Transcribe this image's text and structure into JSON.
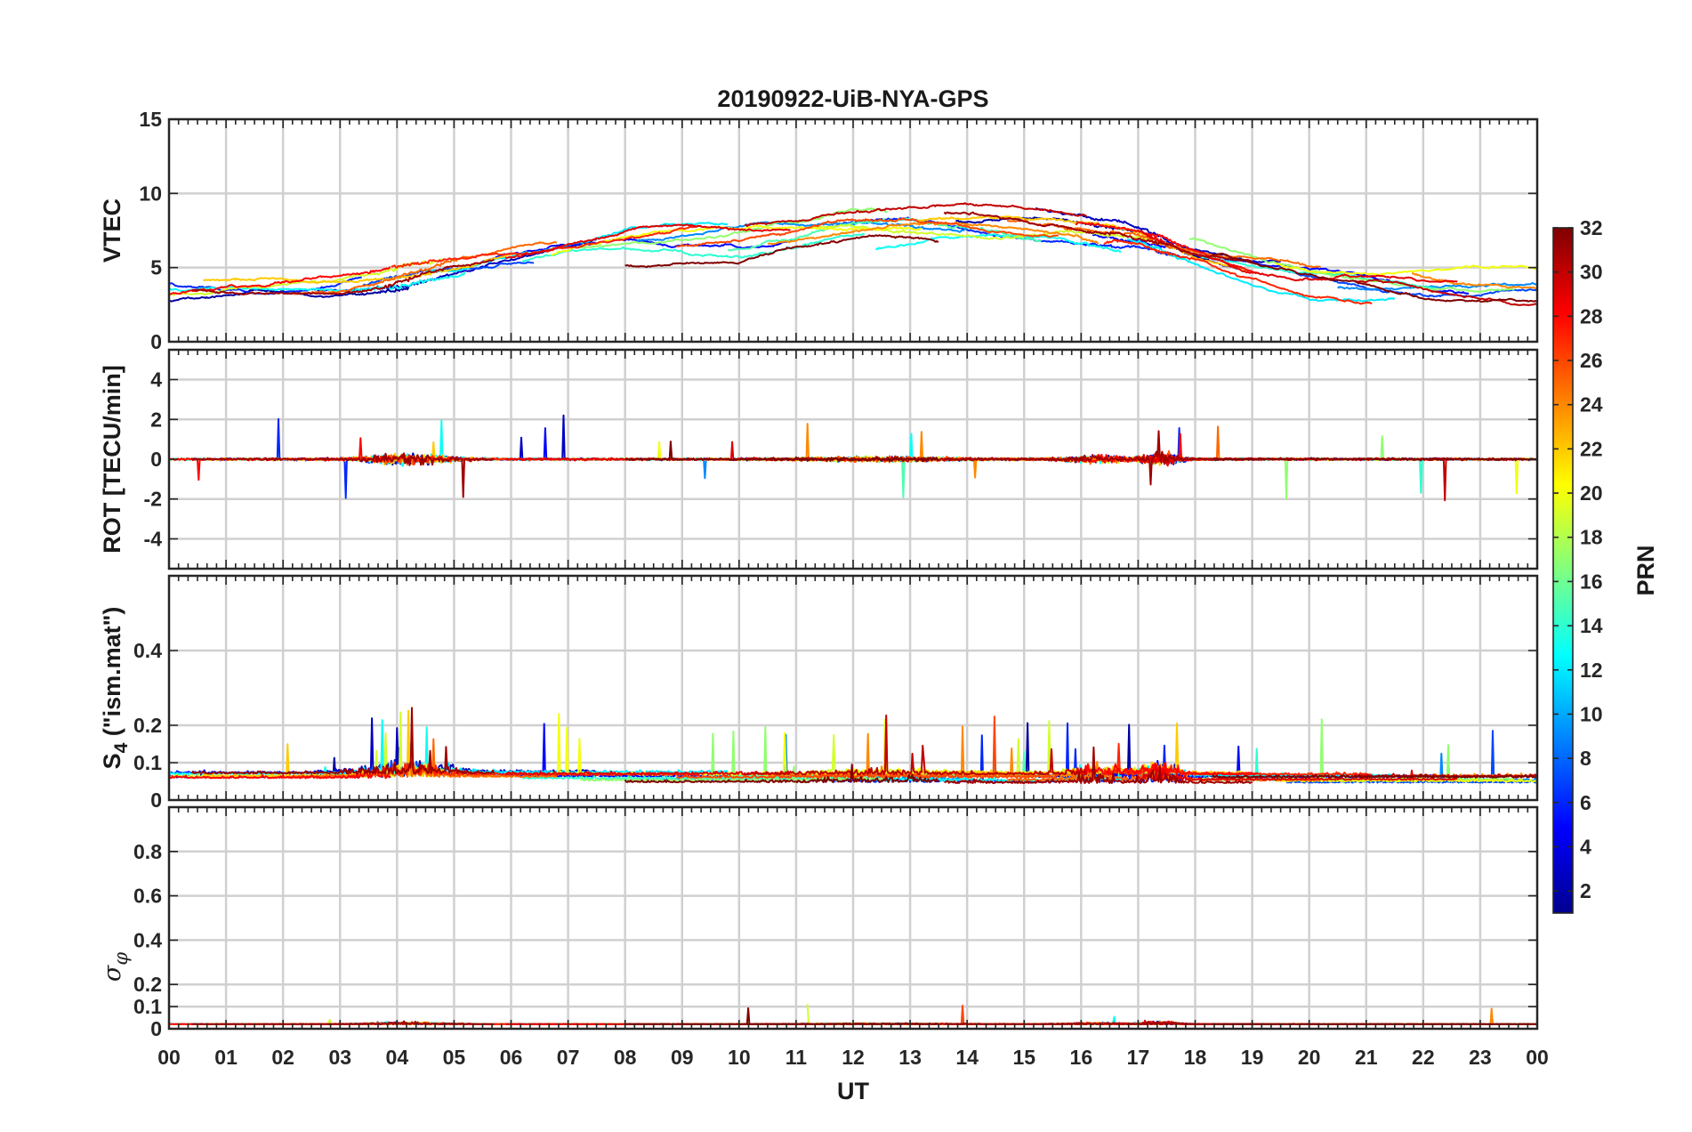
{
  "chart_data": {
    "type": "line",
    "title": "20190922-UiB-NYA-GPS",
    "xlabel": "UT",
    "x_tick_labels": [
      "00",
      "01",
      "02",
      "03",
      "04",
      "05",
      "06",
      "07",
      "08",
      "09",
      "10",
      "11",
      "12",
      "13",
      "14",
      "15",
      "16",
      "17",
      "18",
      "19",
      "20",
      "21",
      "22",
      "23",
      "00"
    ],
    "x_range_hours": [
      0,
      24
    ],
    "grid": true,
    "panels": [
      {
        "id": "vtec",
        "ylabel": "VTEC",
        "ylim": [
          0,
          15
        ],
        "yticks": [
          0,
          5,
          10,
          15
        ],
        "ytick_labels": [
          "0",
          "5",
          "10",
          "15"
        ],
        "typical_range": [
          2,
          10.2
        ],
        "envelope": {
          "hours": [
            0,
            2,
            3,
            4,
            5,
            6,
            7,
            8,
            9,
            10,
            11,
            12,
            13,
            14,
            15,
            16,
            17,
            18,
            19,
            20,
            21,
            22,
            23,
            24
          ],
          "values": [
            3.5,
            3.6,
            3.8,
            4.3,
            5.0,
            5.8,
            6.4,
            6.9,
            7.1,
            7.2,
            7.6,
            8.0,
            8.2,
            8.0,
            7.8,
            7.6,
            7.2,
            6.0,
            5.0,
            4.3,
            4.0,
            3.6,
            3.4,
            3.3
          ]
        }
      },
      {
        "id": "rot",
        "ylabel": "ROT [TECU/min]",
        "ylim": [
          -5.5,
          5.5
        ],
        "yticks": [
          -4,
          -2,
          0,
          2,
          4
        ],
        "ytick_labels": [
          "-4",
          "-2",
          "0",
          "2",
          "4"
        ],
        "typical_range": [
          -2,
          3
        ]
      },
      {
        "id": "s4",
        "ylabel_main": "S",
        "ylabel_sub": "4",
        "ylabel_rest": " (\"ism.mat\")",
        "ylim": [
          0,
          0.6
        ],
        "yticks": [
          0,
          0.1,
          0.2,
          0.4
        ],
        "ytick_labels": [
          "0",
          "0.1",
          "0.2",
          "0.4"
        ],
        "typical_range": [
          0.03,
          0.34
        ]
      },
      {
        "id": "sigphi",
        "ylabel_main": "σ",
        "ylabel_sub": "φ",
        "ylim": [
          0,
          1
        ],
        "yticks": [
          0,
          0.1,
          0.2,
          0.4,
          0.6,
          0.8
        ],
        "ytick_labels": [
          "0",
          "0.1",
          "0.2",
          "0.4",
          "0.6",
          "0.8"
        ],
        "typical_range": [
          0.01,
          0.15
        ]
      }
    ],
    "colorbar": {
      "label": "PRN",
      "colormap": "jet",
      "range": [
        1,
        32
      ],
      "ticks": [
        2,
        4,
        6,
        8,
        10,
        12,
        14,
        16,
        18,
        20,
        22,
        24,
        26,
        28,
        30,
        32
      ],
      "tick_labels": [
        "2",
        "4",
        "6",
        "8",
        "10",
        "12",
        "14",
        "16",
        "18",
        "20",
        "22",
        "24",
        "26",
        "28",
        "30",
        "32"
      ]
    },
    "series_key": "PRN",
    "series": [
      {
        "prn": 2,
        "passes": [
          [
            0,
            4.2
          ],
          [
            13.8,
            18.8
          ]
        ]
      },
      {
        "prn": 3,
        "passes": [
          [
            2.6,
            7.5
          ],
          [
            15.2,
            19.5
          ]
        ]
      },
      {
        "prn": 5,
        "passes": [
          [
            5.5,
            11
          ],
          [
            16.2,
            22.8
          ]
        ]
      },
      {
        "prn": 6,
        "passes": [
          [
            0,
            3.4
          ],
          [
            11.6,
            17.8
          ]
        ]
      },
      {
        "prn": 7,
        "passes": [
          [
            3.4,
            6.4
          ],
          [
            19.6,
            24
          ]
        ]
      },
      {
        "prn": 9,
        "passes": [
          [
            8.2,
            14
          ],
          [
            20.5,
            24
          ]
        ]
      },
      {
        "prn": 12,
        "passes": [
          [
            4.5,
            9.8
          ],
          [
            16.8,
            21.5
          ]
        ]
      },
      {
        "prn": 13,
        "passes": [
          [
            0,
            5.2
          ],
          [
            12.4,
            16.7
          ]
        ]
      },
      {
        "prn": 14,
        "passes": [
          [
            6.2,
            12.2
          ],
          [
            18.1,
            22.2
          ]
        ]
      },
      {
        "prn": 15,
        "passes": [
          [
            9.8,
            15.3
          ]
        ]
      },
      {
        "prn": 17,
        "passes": [
          [
            7.2,
            12.6
          ],
          [
            17.9,
            23.6
          ]
        ]
      },
      {
        "prn": 19,
        "passes": [
          [
            0,
            4.8
          ],
          [
            11.2,
            17.2
          ]
        ]
      },
      {
        "prn": 20,
        "passes": [
          [
            6.7,
            13.2
          ],
          [
            19.4,
            24
          ]
        ]
      },
      {
        "prn": 22,
        "passes": [
          [
            0.6,
            6.1
          ],
          [
            13.1,
            18.9
          ]
        ]
      },
      {
        "prn": 24,
        "passes": [
          [
            10.5,
            16.3
          ],
          [
            21.8,
            24
          ]
        ]
      },
      {
        "prn": 25,
        "passes": [
          [
            2.1,
            6.8
          ],
          [
            14.7,
            20.2
          ]
        ]
      },
      {
        "prn": 26,
        "passes": [
          [
            8.9,
            15.6
          ]
        ]
      },
      {
        "prn": 27,
        "passes": [
          [
            3.9,
            9.3
          ],
          [
            16.4,
            21.1
          ]
        ]
      },
      {
        "prn": 28,
        "passes": [
          [
            0,
            3.9
          ],
          [
            15.9,
            19.1
          ]
        ]
      },
      {
        "prn": 29,
        "passes": [
          [
            5.9,
            10.9
          ],
          [
            17.0,
            22.6
          ]
        ]
      },
      {
        "prn": 30,
        "passes": [
          [
            10.1,
            16.1
          ],
          [
            20.8,
            24
          ]
        ]
      },
      {
        "prn": 31,
        "passes": [
          [
            0.4,
            5.7
          ],
          [
            13.6,
            19.0
          ]
        ]
      },
      {
        "prn": 32,
        "passes": [
          [
            8.0,
            13.5
          ],
          [
            18.3,
            24
          ]
        ]
      }
    ]
  }
}
